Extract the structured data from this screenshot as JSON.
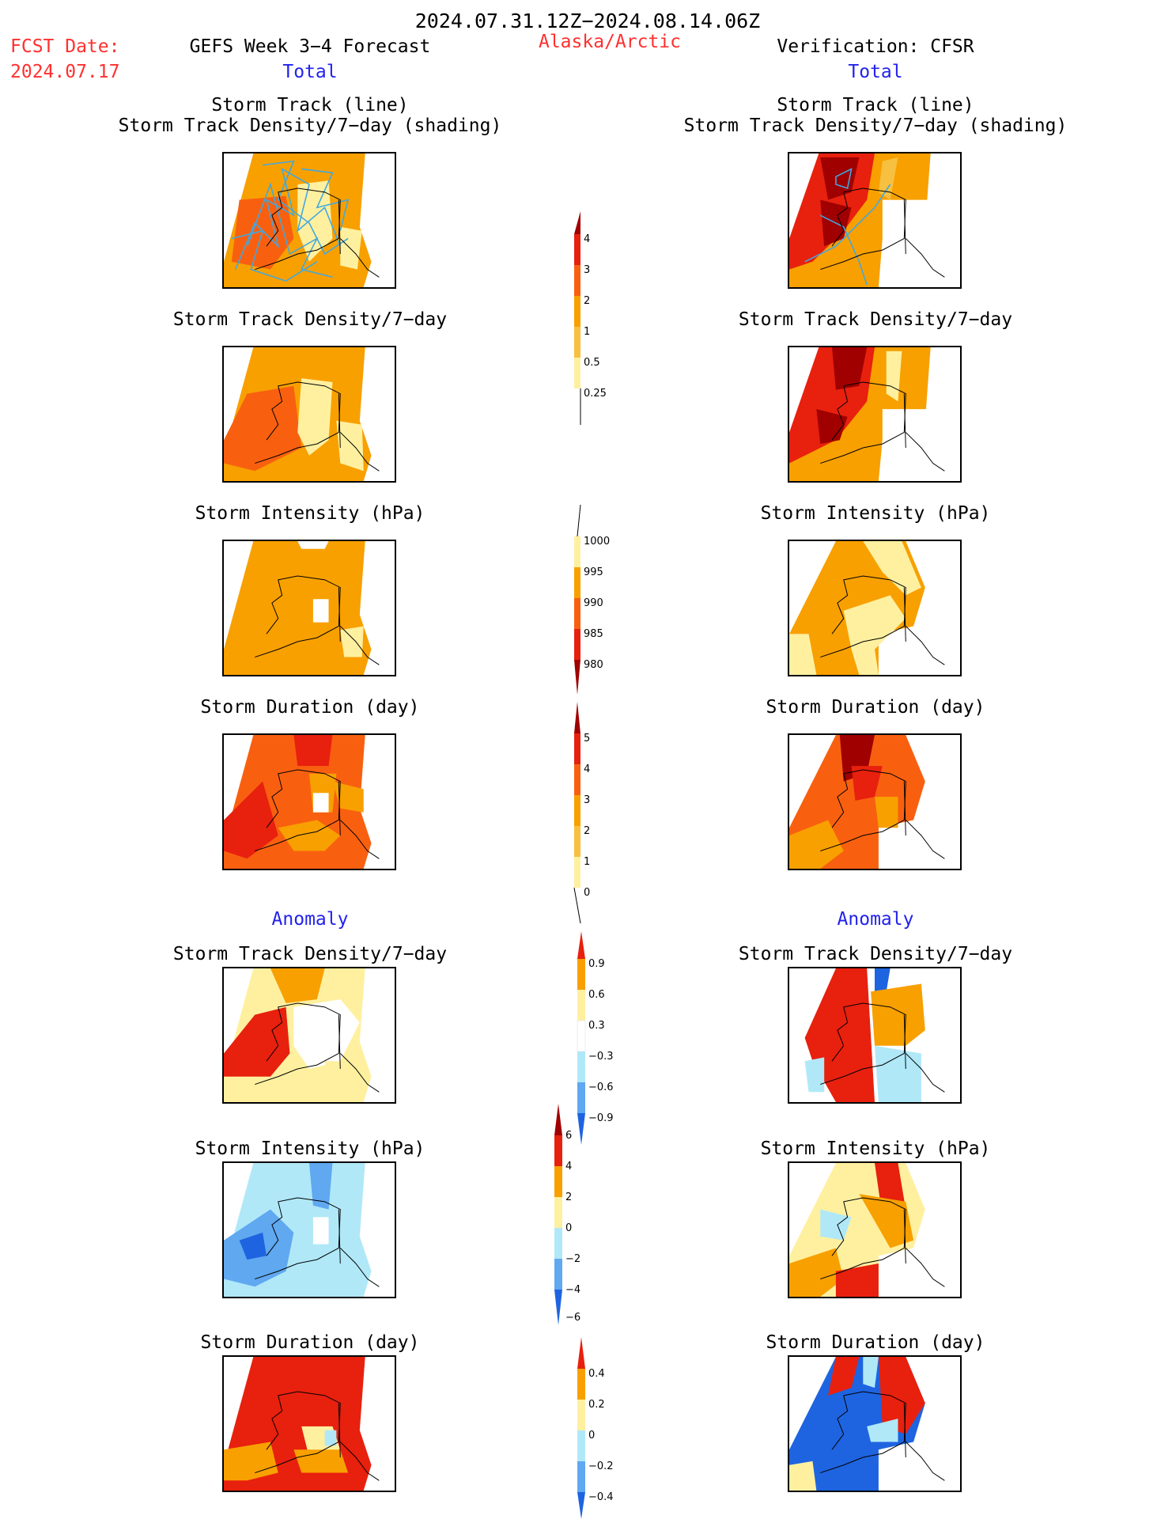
{
  "header": {
    "date_range": "2024.07.31.12Z−2024.08.14.06Z",
    "fcst_label": "FCST Date:",
    "fcst_date": "2024.07.17",
    "forecast_title": "GEFS Week 3−4 Forecast",
    "region": "Alaska/Arctic",
    "verification": "Verification: CFSR"
  },
  "sections": {
    "total_left": "Total",
    "total_right": "Total",
    "anomaly_left": "Anomaly",
    "anomaly_right": "Anomaly"
  },
  "panel_titles": {
    "track_line": "Storm Track (line)",
    "track_shading": "Storm Track Density/7−day (shading)",
    "density": "Storm Track Density/7−day",
    "intensity": "Storm Intensity (hPa)",
    "duration": "Storm Duration (day)"
  },
  "colorbars": {
    "density_total": [
      "4",
      "3",
      "2",
      "1",
      "0.5",
      "0.25"
    ],
    "intensity_total": [
      "1000",
      "995",
      "990",
      "985",
      "980"
    ],
    "duration_total": [
      "5",
      "4",
      "3",
      "2",
      "1",
      "0"
    ],
    "density_anom": [
      "0.9",
      "0.6",
      "0.3",
      "−0.3",
      "−0.6",
      "−0.9"
    ],
    "intensity_anom": [
      "6",
      "4",
      "2",
      "0",
      "−2",
      "−4",
      "−6"
    ],
    "duration_anom": [
      "0.4",
      "0.2",
      "0",
      "−0.2",
      "−0.4"
    ]
  },
  "colors": {
    "dark_red": "#a00000",
    "red": "#e8200e",
    "orange_red": "#f86010",
    "orange": "#f8a000",
    "light_orange": "#f8c040",
    "yellow": "#fff0a0",
    "light_blue": "#b0e8f8",
    "mid_blue": "#60a8f0",
    "blue": "#1e64e0",
    "track_line": "#40a8e0"
  }
}
